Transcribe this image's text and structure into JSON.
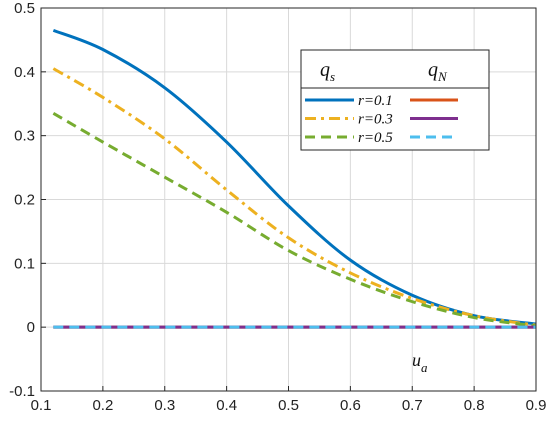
{
  "chart_data": {
    "type": "line",
    "xlabel": "u",
    "xlabel_sub": "a",
    "xlim": [
      0.1,
      0.9
    ],
    "ylim": [
      -0.1,
      0.5
    ],
    "xticks": [
      "0.1",
      "0.2",
      "0.3",
      "0.4",
      "0.5",
      "0.6",
      "0.7",
      "0.8",
      "0.9"
    ],
    "yticks": [
      "-0.1",
      "0",
      "0.1",
      "0.2",
      "0.3",
      "0.4",
      "0.5"
    ],
    "grid": true,
    "legend": {
      "placement": "top-right",
      "header_left": "q",
      "header_left_sub": "s",
      "header_right": "q",
      "header_right_sub": "N",
      "rows": [
        "r=0.1",
        "r=0.3",
        "r=0.5"
      ]
    },
    "x": [
      0.12,
      0.2,
      0.3,
      0.4,
      0.5,
      0.6,
      0.7,
      0.8,
      0.9
    ],
    "series": [
      {
        "group": "q_s",
        "r": "r=0.1",
        "color": "#0072BD",
        "dash": "solid",
        "values": [
          0.465,
          0.435,
          0.375,
          0.29,
          0.19,
          0.105,
          0.05,
          0.018,
          0.005
        ]
      },
      {
        "group": "q_s",
        "r": "r=0.3",
        "color": "#EDB120",
        "dash": "dashdot",
        "values": [
          0.405,
          0.36,
          0.295,
          0.215,
          0.14,
          0.085,
          0.045,
          0.018,
          0.003
        ]
      },
      {
        "group": "q_s",
        "r": "r=0.5",
        "color": "#77AC30",
        "dash": "dashed",
        "values": [
          0.335,
          0.29,
          0.235,
          0.18,
          0.12,
          0.075,
          0.04,
          0.015,
          0.002
        ]
      },
      {
        "group": "q_N",
        "r": "r=0.1",
        "color": "#D95319",
        "dash": "solid",
        "values": [
          0,
          0,
          0,
          0,
          0,
          0,
          0,
          0,
          0
        ]
      },
      {
        "group": "q_N",
        "r": "r=0.3",
        "color": "#7E2F8E",
        "dash": "solid",
        "values": [
          0,
          0,
          0,
          0,
          0,
          0,
          0,
          0,
          0
        ]
      },
      {
        "group": "q_N",
        "r": "r=0.5",
        "color": "#4DBEEE",
        "dash": "dashed",
        "values": [
          0,
          0,
          0,
          0,
          0,
          0,
          0,
          0,
          0
        ]
      }
    ]
  }
}
